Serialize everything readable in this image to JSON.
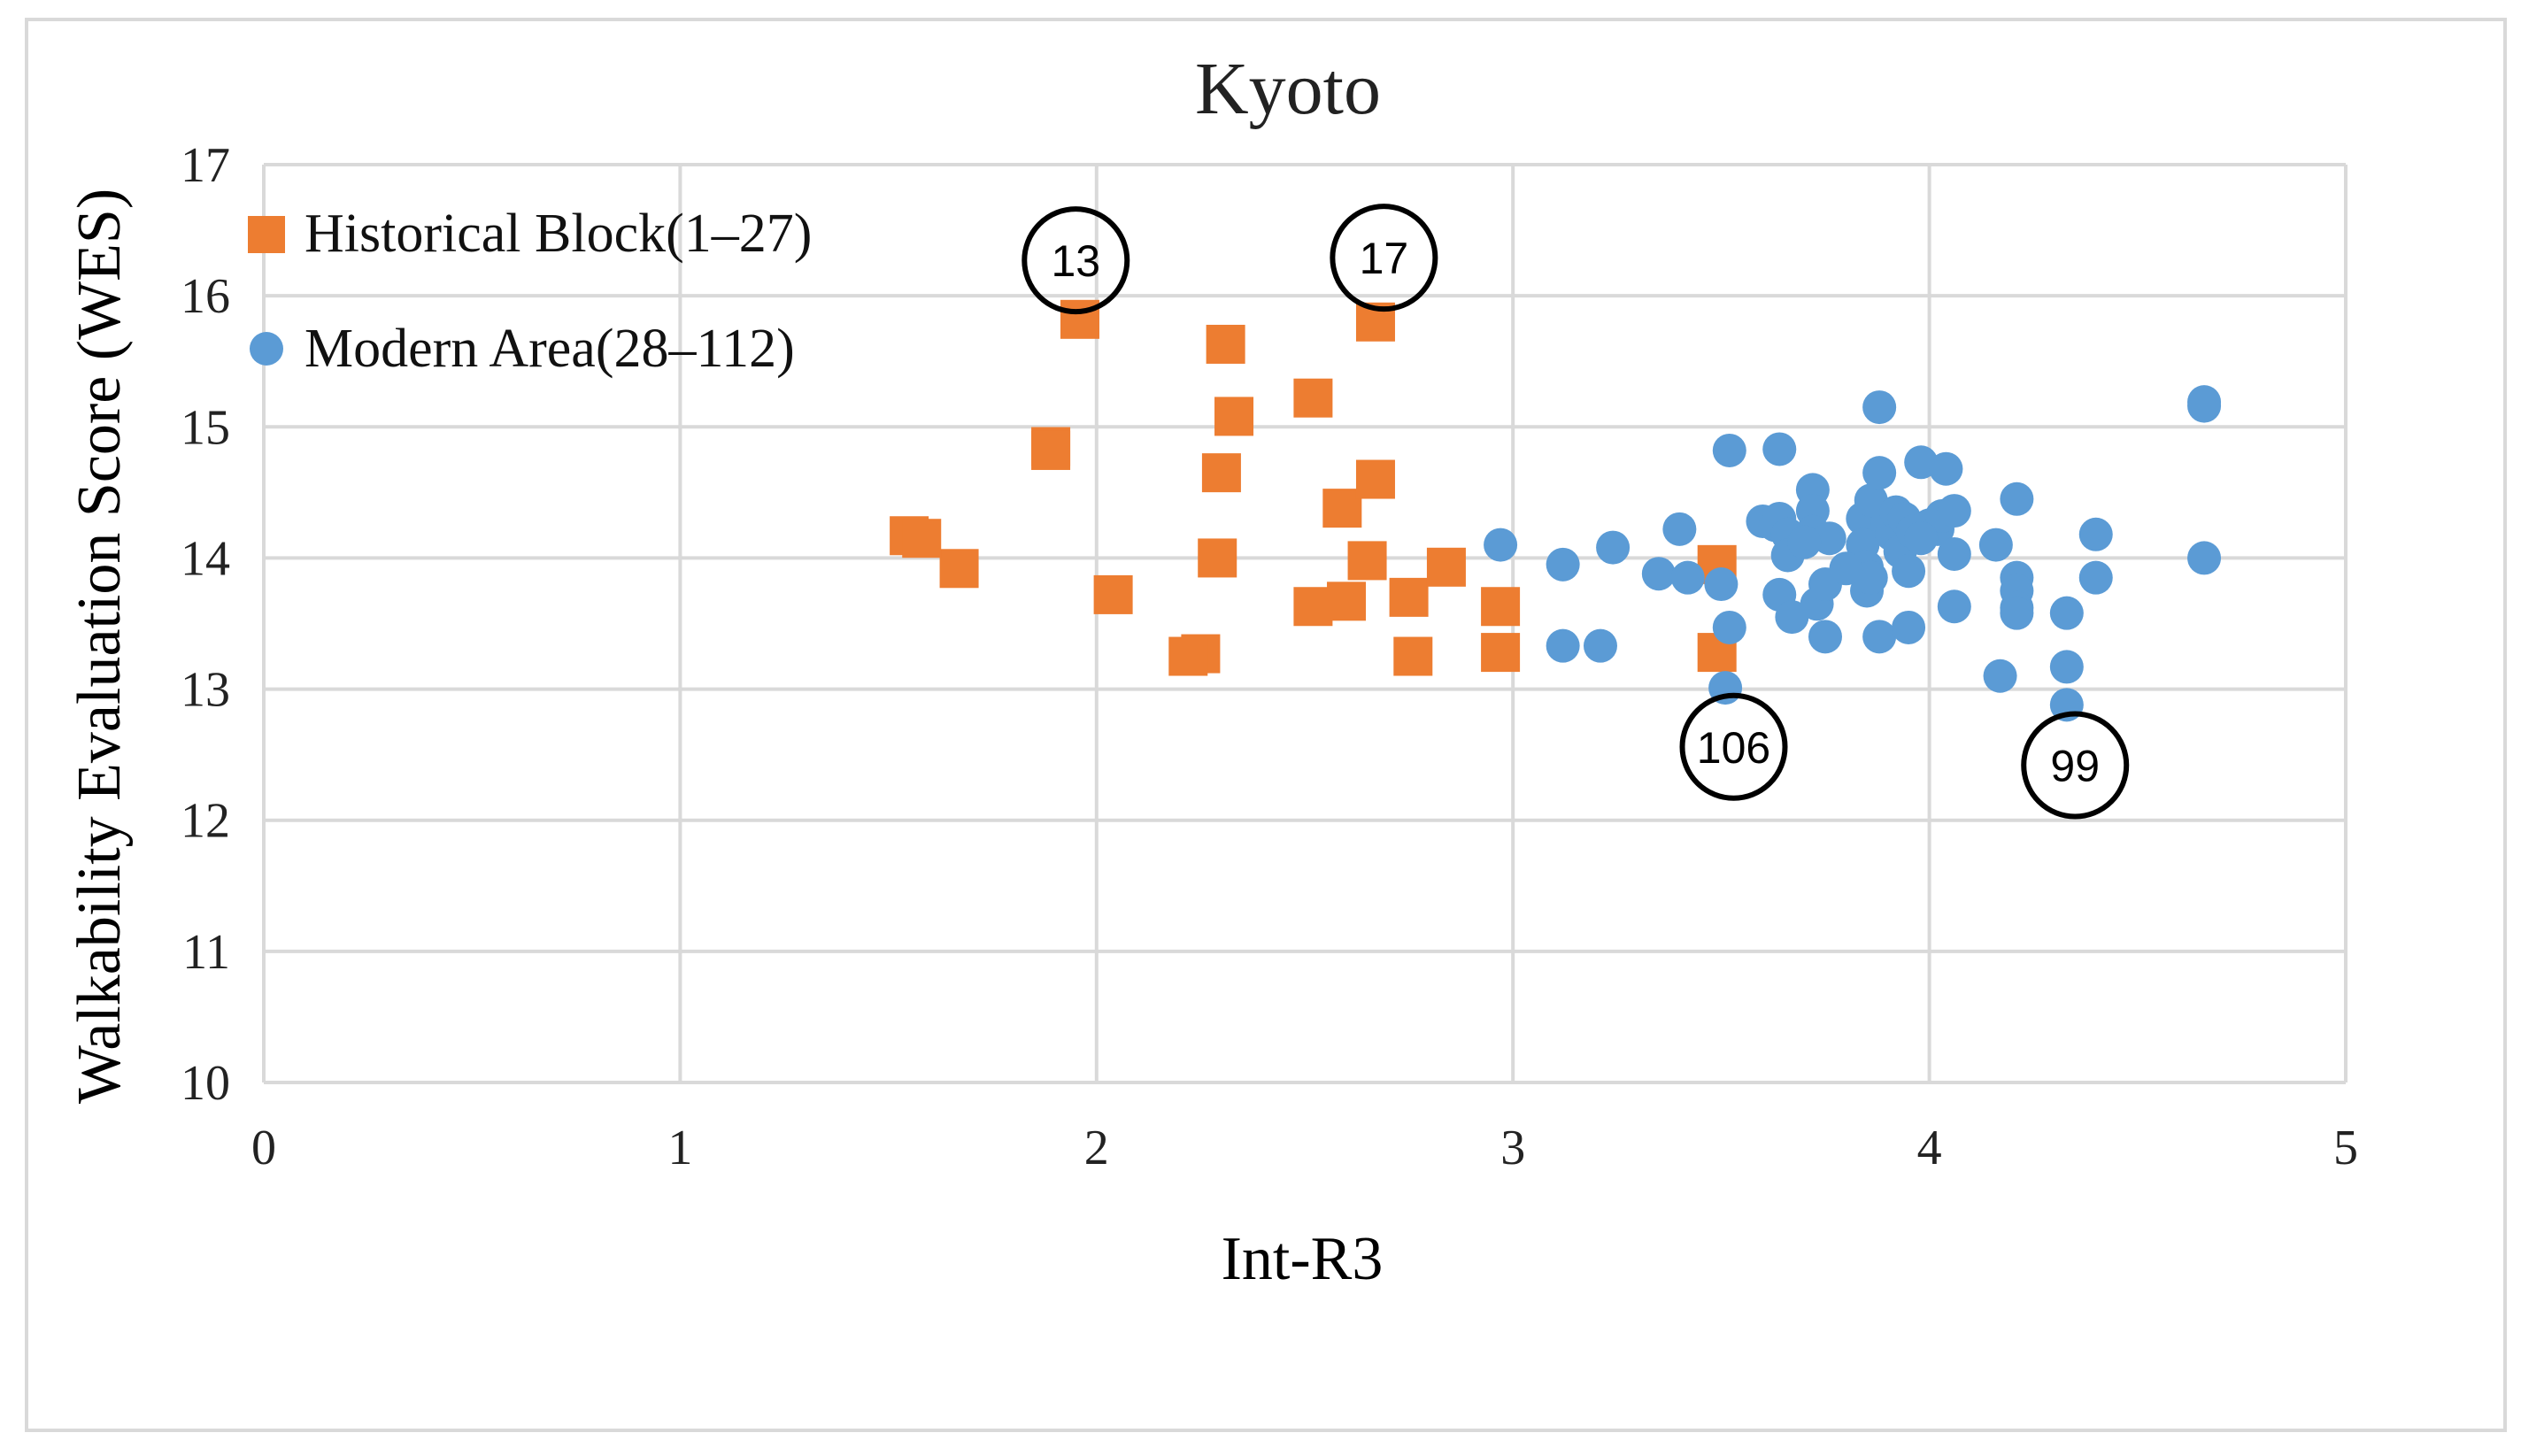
{
  "chart_data": {
    "type": "scatter",
    "title": "Kyoto",
    "xlabel": "Int-R3",
    "ylabel": "Walkability Evaluation Score (WES)",
    "xlim": [
      0,
      5
    ],
    "ylim": [
      10,
      17
    ],
    "x_ticks": [
      "0",
      "1",
      "2",
      "3",
      "4",
      "5"
    ],
    "y_ticks": [
      "10",
      "11",
      "12",
      "13",
      "14",
      "15",
      "16",
      "17"
    ],
    "grid": true,
    "legend_position": "top-left",
    "series": [
      {
        "name": "Historical Block(1–27)",
        "color": "#ed7d31",
        "marker": "square",
        "points": [
          [
            1.55,
            14.17
          ],
          [
            1.67,
            13.92
          ],
          [
            1.89,
            14.85
          ],
          [
            1.89,
            14.82
          ],
          [
            1.96,
            15.82
          ],
          [
            2.04,
            13.72
          ],
          [
            2.25,
            13.27
          ],
          [
            2.29,
            14.0
          ],
          [
            2.3,
            14.65
          ],
          [
            2.31,
            15.63
          ],
          [
            2.33,
            15.08
          ],
          [
            2.52,
            15.22
          ],
          [
            2.52,
            13.63
          ],
          [
            2.59,
            14.38
          ],
          [
            2.6,
            13.67
          ],
          [
            2.65,
            13.98
          ],
          [
            2.67,
            14.6
          ],
          [
            2.67,
            15.8
          ],
          [
            2.75,
            13.7
          ],
          [
            2.76,
            13.25
          ],
          [
            2.84,
            13.93
          ],
          [
            2.97,
            13.63
          ],
          [
            2.97,
            13.28
          ],
          [
            3.49,
            13.95
          ],
          [
            3.49,
            13.28
          ],
          [
            2.22,
            13.25
          ],
          [
            1.58,
            14.15
          ]
        ]
      },
      {
        "name": "Modern Area(28–112)",
        "color": "#5b9bd5",
        "marker": "circle",
        "points": [
          [
            2.97,
            14.1
          ],
          [
            3.12,
            13.95
          ],
          [
            3.12,
            13.33
          ],
          [
            3.21,
            13.33
          ],
          [
            3.24,
            14.08
          ],
          [
            3.35,
            13.88
          ],
          [
            3.4,
            14.22
          ],
          [
            3.42,
            13.85
          ],
          [
            3.5,
            13.8
          ],
          [
            3.51,
            13.01
          ],
          [
            3.52,
            14.82
          ],
          [
            3.52,
            13.47
          ],
          [
            3.6,
            14.28
          ],
          [
            3.63,
            14.25
          ],
          [
            3.64,
            14.3
          ],
          [
            3.64,
            14.83
          ],
          [
            3.64,
            13.72
          ],
          [
            3.66,
            14.18
          ],
          [
            3.66,
            14.02
          ],
          [
            3.67,
            13.55
          ],
          [
            3.72,
            14.52
          ],
          [
            3.72,
            14.36
          ],
          [
            3.72,
            14.2
          ],
          [
            3.73,
            13.65
          ],
          [
            3.75,
            13.8
          ],
          [
            3.75,
            13.4
          ],
          [
            3.76,
            14.15
          ],
          [
            3.84,
            14.3
          ],
          [
            3.84,
            14.1
          ],
          [
            3.85,
            13.93
          ],
          [
            3.85,
            13.75
          ],
          [
            3.86,
            14.44
          ],
          [
            3.86,
            13.85
          ],
          [
            3.88,
            15.15
          ],
          [
            3.88,
            14.65
          ],
          [
            3.88,
            13.4
          ],
          [
            3.9,
            14.26
          ],
          [
            3.91,
            14.18
          ],
          [
            3.92,
            14.35
          ],
          [
            3.93,
            14.05
          ],
          [
            3.94,
            14.3
          ],
          [
            3.95,
            13.9
          ],
          [
            3.95,
            13.47
          ],
          [
            3.96,
            14.2
          ],
          [
            3.98,
            14.73
          ],
          [
            4.0,
            14.25
          ],
          [
            4.02,
            14.22
          ],
          [
            4.03,
            14.32
          ],
          [
            4.04,
            14.68
          ],
          [
            4.06,
            14.36
          ],
          [
            4.06,
            14.03
          ],
          [
            4.06,
            13.63
          ],
          [
            4.16,
            14.1
          ],
          [
            4.17,
            13.1
          ],
          [
            4.21,
            14.45
          ],
          [
            4.21,
            13.85
          ],
          [
            4.21,
            13.75
          ],
          [
            4.21,
            13.62
          ],
          [
            4.21,
            13.58
          ],
          [
            4.33,
            13.58
          ],
          [
            4.33,
            13.17
          ],
          [
            4.33,
            12.88
          ],
          [
            4.4,
            14.18
          ],
          [
            4.4,
            13.85
          ],
          [
            4.66,
            15.19
          ],
          [
            4.66,
            15.16
          ],
          [
            4.66,
            14.0
          ],
          [
            3.8,
            13.92
          ],
          [
            3.98,
            14.15
          ],
          [
            3.7,
            14.12
          ]
        ]
      }
    ],
    "annotations": [
      {
        "label": "13",
        "x": 1.95,
        "y": 16.27
      },
      {
        "label": "17",
        "x": 2.69,
        "y": 16.29
      },
      {
        "label": "106",
        "x": 3.53,
        "y": 12.56
      },
      {
        "label": "99",
        "x": 4.35,
        "y": 12.42
      }
    ]
  }
}
